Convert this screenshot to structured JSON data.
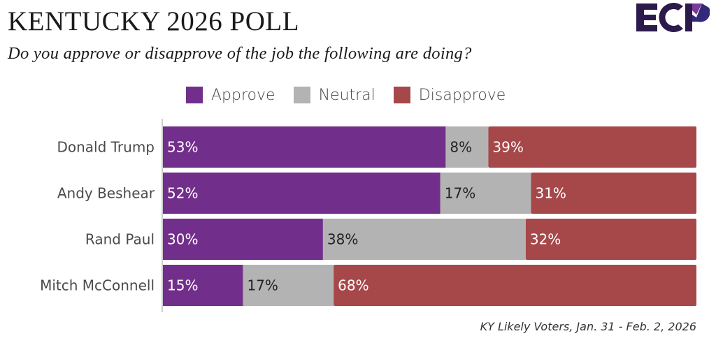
{
  "header": {
    "title": "KENTUCKY 2026 POLL",
    "subtitle": "Do you approve or disapprove of the job the following are doing?",
    "logo_text": "ECP"
  },
  "colors": {
    "approve": "#722e8b",
    "neutral": "#b3b3b3",
    "disapprove": "#a6474a",
    "logo_dark": "#2c1a4d",
    "logo_purple": "#7b3a97",
    "logo_navy": "#312a7a"
  },
  "legend": [
    {
      "label": "Approve",
      "color_key": "approve"
    },
    {
      "label": "Neutral",
      "color_key": "neutral"
    },
    {
      "label": "Disapprove",
      "color_key": "disapprove"
    }
  ],
  "footnote": "KY Likely Voters, Jan. 31 - Feb. 2, 2026",
  "chart_data": {
    "type": "bar",
    "orientation": "horizontal",
    "stacked": true,
    "title": "KENTUCKY 2026 POLL",
    "subtitle": "Do you approve or disapprove of the job the following are doing?",
    "xlabel": "",
    "ylabel": "",
    "xlim": [
      0,
      100
    ],
    "grid": false,
    "legend_position": "top",
    "categories": [
      "Donald Trump",
      "Andy Beshear",
      "Rand Paul",
      "Mitch McConnell"
    ],
    "series": [
      {
        "name": "Approve",
        "values": [
          53,
          52,
          30,
          15
        ],
        "labels": [
          "53%",
          "52%",
          "30%",
          "15%"
        ]
      },
      {
        "name": "Neutral",
        "values": [
          8,
          17,
          38,
          17
        ],
        "labels": [
          "8%",
          "17%",
          "38%",
          "17%"
        ]
      },
      {
        "name": "Disapprove",
        "values": [
          39,
          31,
          32,
          68
        ],
        "labels": [
          "39%",
          "31%",
          "32%",
          "68%"
        ]
      }
    ],
    "note": "KY Likely Voters, Jan. 31 - Feb. 2, 2026"
  }
}
